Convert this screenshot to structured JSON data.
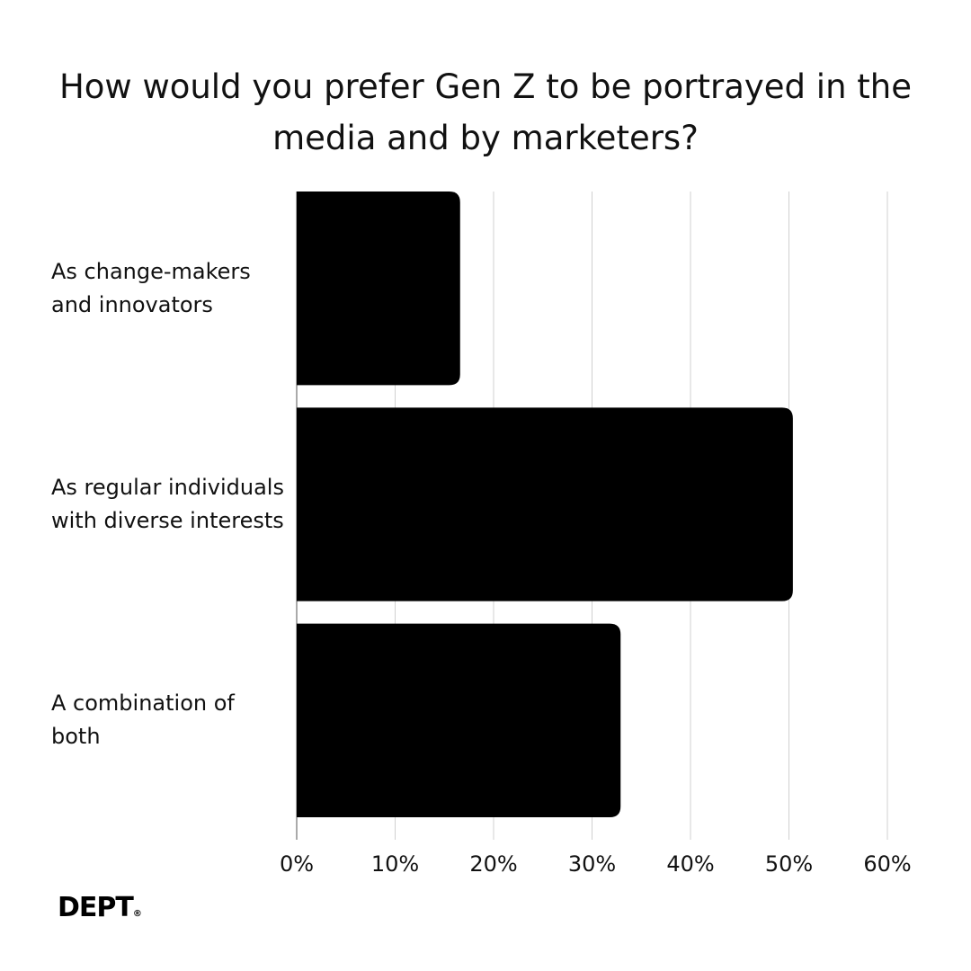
{
  "chart_data": {
    "type": "bar",
    "orientation": "horizontal",
    "title": "How would you prefer Gen Z to be portrayed in the media and by marketers?",
    "categories": [
      "As change-makers and innovators",
      "As regular individuals with diverse interests",
      "A combination of both"
    ],
    "values": [
      16.6,
      50.4,
      32.9
    ],
    "color": "#000000",
    "xlim": [
      0,
      60
    ],
    "xticks": [
      {
        "value": 0,
        "label": "0%"
      },
      {
        "value": 10,
        "label": "10%"
      },
      {
        "value": 20,
        "label": "20%"
      },
      {
        "value": 30,
        "label": "30%"
      },
      {
        "value": 40,
        "label": "40%"
      },
      {
        "value": 50,
        "label": "50%"
      },
      {
        "value": 60,
        "label": "60%"
      }
    ],
    "grid": true
  },
  "logo": "DEPT",
  "logo_mark": "®"
}
